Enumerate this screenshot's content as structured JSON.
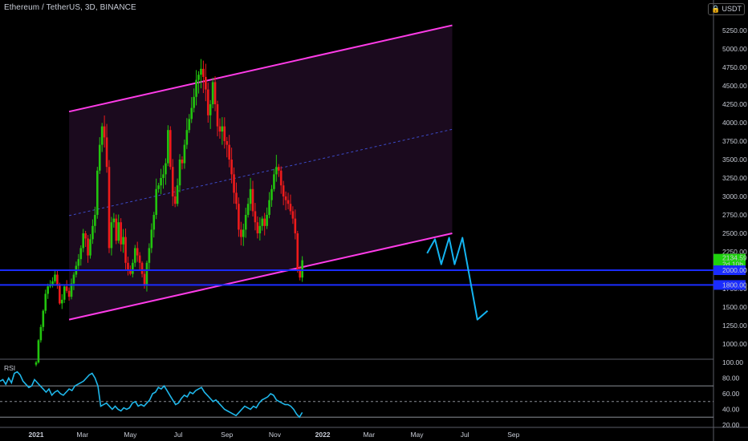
{
  "header": {
    "title": "Ethereum / TetherUS, 3D, BINANCE",
    "currency": "USDT",
    "currency_icon": "lock-icon"
  },
  "colors": {
    "background": "#000000",
    "candle_up": "#22c40e",
    "candle_down": "#ee1b1b",
    "channel": "#ff3ce8",
    "channel_fill": "#1c0b20",
    "midline": "#3b4ac7",
    "support": "#1a2cff",
    "projection": "#14b4f0",
    "rsi_line": "#1fb7ea",
    "price_badge": "#1fd10e"
  },
  "chart_data": [
    {
      "type": "candlestick",
      "title": "Ethereum / TetherUS, 3D, BINANCE",
      "price_axis_ticks": [
        1000,
        1250,
        1500,
        1750,
        2000,
        2250,
        2500,
        2750,
        3000,
        3250,
        3500,
        3750,
        4000,
        4250,
        4500,
        4750,
        5000,
        5250
      ],
      "price_tick_labels": [
        "1000.00",
        "1250.00",
        "1500.00",
        "1750.00",
        "2000.00",
        "2250.00",
        "2500.00",
        "2750.00",
        "3000.00",
        "3250.00",
        "3500.00",
        "3750.00",
        "4000.00",
        "4250.00",
        "4500.00",
        "4750.00",
        "5000.00",
        "5250.00"
      ],
      "time_axis_labels": [
        "2021",
        "Mar",
        "May",
        "Jul",
        "Sep",
        "Nov",
        "2022",
        "Mar",
        "May",
        "Jul",
        "Sep"
      ],
      "last_price": "2134.59",
      "last_price_countdown": "2d 10h",
      "horizontal_levels": [
        {
          "label": "2000.00",
          "value": 2000
        },
        {
          "label": "1800.00",
          "value": 1800
        }
      ],
      "channel": {
        "lower": {
          "x0": "2021-02-12",
          "y0": 1330,
          "x1": "2022-06-15",
          "y1": 2500
        },
        "upper": {
          "x0": "2021-02-12",
          "y0": 4150,
          "x1": "2022-06-15",
          "y1": 5320
        },
        "middle": {
          "x0": "2021-02-12",
          "y0": 2740,
          "x1": "2022-06-15",
          "y1": 3910
        }
      },
      "closes": [
        [
          0,
          750
        ],
        [
          3,
          1050
        ],
        [
          6,
          1230
        ],
        [
          9,
          1450
        ],
        [
          12,
          1680
        ],
        [
          15,
          1780
        ],
        [
          18,
          1800
        ],
        [
          21,
          1850
        ],
        [
          24,
          1940
        ],
        [
          27,
          1800
        ],
        [
          30,
          1550
        ],
        [
          33,
          1600
        ],
        [
          36,
          1780
        ],
        [
          39,
          1720
        ],
        [
          42,
          1640
        ],
        [
          45,
          1820
        ],
        [
          48,
          1940
        ],
        [
          51,
          2060
        ],
        [
          54,
          2150
        ],
        [
          57,
          2300
        ],
        [
          60,
          2500
        ],
        [
          63,
          2430
        ],
        [
          66,
          2200
        ],
        [
          69,
          2420
        ],
        [
          72,
          2600
        ],
        [
          75,
          2750
        ],
        [
          78,
          3350
        ],
        [
          81,
          3700
        ],
        [
          84,
          3950
        ],
        [
          87,
          3800
        ],
        [
          90,
          3400
        ],
        [
          93,
          2300
        ],
        [
          96,
          2650
        ],
        [
          99,
          2700
        ],
        [
          102,
          2400
        ],
        [
          105,
          2650
        ],
        [
          108,
          2350
        ],
        [
          111,
          2450
        ],
        [
          114,
          2100
        ],
        [
          117,
          2000
        ],
        [
          120,
          1950
        ],
        [
          123,
          2100
        ],
        [
          126,
          2300
        ],
        [
          129,
          2200
        ],
        [
          132,
          2100
        ],
        [
          135,
          1950
        ],
        [
          138,
          1800
        ],
        [
          141,
          2100
        ],
        [
          144,
          2300
        ],
        [
          147,
          2550
        ],
        [
          150,
          2750
        ],
        [
          153,
          3100
        ],
        [
          156,
          3150
        ],
        [
          159,
          3250
        ],
        [
          162,
          3300
        ],
        [
          165,
          3450
        ],
        [
          168,
          3900
        ],
        [
          171,
          3400
        ],
        [
          174,
          3000
        ],
        [
          177,
          2900
        ],
        [
          180,
          3150
        ],
        [
          183,
          3500
        ],
        [
          186,
          3450
        ],
        [
          189,
          3700
        ],
        [
          192,
          3900
        ],
        [
          195,
          4050
        ],
        [
          198,
          4200
        ],
        [
          201,
          4350
        ],
        [
          204,
          4580
        ],
        [
          207,
          4650
        ],
        [
          210,
          4730
        ],
        [
          213,
          4620
        ],
        [
          216,
          4450
        ],
        [
          219,
          4100
        ],
        [
          222,
          4250
        ],
        [
          225,
          4550
        ],
        [
          228,
          4250
        ],
        [
          231,
          3950
        ],
        [
          234,
          3880
        ],
        [
          237,
          3950
        ],
        [
          240,
          3750
        ],
        [
          243,
          3700
        ],
        [
          246,
          3500
        ],
        [
          249,
          3300
        ],
        [
          252,
          3050
        ],
        [
          255,
          2900
        ],
        [
          258,
          2550
        ],
        [
          261,
          2450
        ],
        [
          264,
          2550
        ],
        [
          267,
          2750
        ],
        [
          270,
          2900
        ],
        [
          273,
          3100
        ],
        [
          276,
          2800
        ],
        [
          279,
          2650
        ],
        [
          282,
          2500
        ],
        [
          285,
          2600
        ],
        [
          288,
          2700
        ],
        [
          291,
          2600
        ],
        [
          294,
          2750
        ],
        [
          297,
          2950
        ],
        [
          300,
          3100
        ],
        [
          303,
          3300
        ],
        [
          306,
          3400
        ],
        [
          309,
          3350
        ],
        [
          312,
          3150
        ],
        [
          315,
          3000
        ],
        [
          318,
          2950
        ],
        [
          321,
          2900
        ],
        [
          324,
          2800
        ],
        [
          327,
          2700
        ],
        [
          330,
          2500
        ],
        [
          333,
          2000
        ],
        [
          336,
          1900
        ],
        [
          339,
          2134.59
        ]
      ],
      "x_units": "days since 2021-01-01",
      "y_units": "USDT"
    },
    {
      "type": "line",
      "title": "RSI",
      "ylim": [
        20,
        100
      ],
      "tick_labels": [
        "100.00",
        "80.00",
        "60.00",
        "40.00",
        "20.00"
      ],
      "levels": [
        70,
        50,
        30
      ],
      "series": [
        {
          "name": "RSI",
          "values": [
            76,
            78,
            72,
            80,
            74,
            86,
            88,
            84,
            76,
            72,
            68,
            70,
            78,
            74,
            70,
            66,
            62,
            66,
            58,
            62,
            64,
            60,
            58,
            62,
            66,
            64,
            70,
            72,
            74,
            76,
            80,
            84,
            86,
            80,
            70,
            44,
            46,
            48,
            44,
            40,
            44,
            40,
            38,
            42,
            40,
            42,
            48,
            50,
            44,
            46,
            44,
            48,
            52,
            60,
            62,
            68,
            66,
            70,
            64,
            58,
            52,
            46,
            48,
            54,
            58,
            56,
            62,
            60,
            64,
            66,
            68,
            62,
            58,
            54,
            50,
            52,
            48,
            44,
            40,
            38,
            36,
            34,
            32,
            36,
            40,
            44,
            42,
            40,
            44,
            42,
            48,
            52,
            54,
            56,
            60,
            58,
            52,
            50,
            48,
            46,
            46,
            44,
            40,
            34,
            30,
            36
          ]
        }
      ]
    }
  ],
  "annotations": {
    "projection_path": [
      {
        "date": "2022-05-14",
        "price": 2230
      },
      {
        "date": "2022-05-24",
        "price": 2420
      },
      {
        "date": "2022-06-01",
        "price": 2080
      },
      {
        "date": "2022-06-11",
        "price": 2440
      },
      {
        "date": "2022-06-18",
        "price": 2080
      },
      {
        "date": "2022-06-28",
        "price": 2440
      },
      {
        "date": "2022-07-17",
        "price": 1330
      },
      {
        "date": "2022-07-30",
        "price": 1450
      }
    ]
  }
}
